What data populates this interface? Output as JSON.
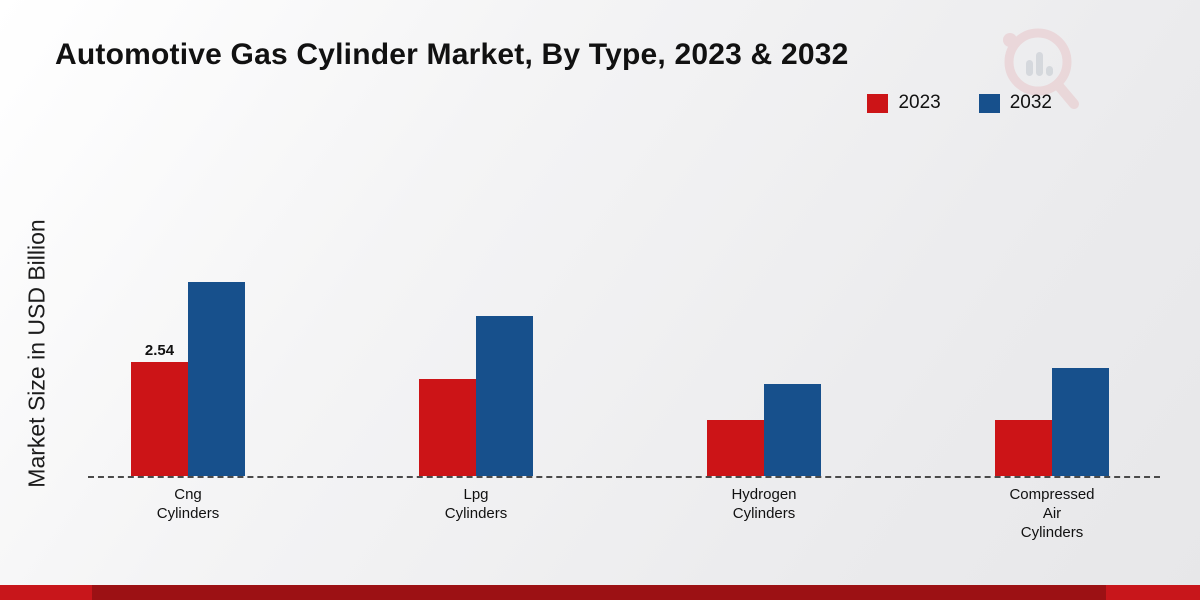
{
  "title": "Automotive Gas Cylinder Market, By Type, 2023 & 2032",
  "ylabel": "Market Size in USD Billion",
  "legend": [
    {
      "label": "2023",
      "color": "#cc1417"
    },
    {
      "label": "2032",
      "color": "#17508c"
    }
  ],
  "chart_data": {
    "type": "bar",
    "categories": [
      {
        "name": "Cng Cylinders",
        "lines": [
          "Cng",
          "Cylinders"
        ]
      },
      {
        "name": "Lpg Cylinders",
        "lines": [
          "Lpg",
          "Cylinders"
        ]
      },
      {
        "name": "Hydrogen Cylinders",
        "lines": [
          "Hydrogen",
          "Cylinders"
        ]
      },
      {
        "name": "Compressed Air Cylinders",
        "lines": [
          "Compressed",
          "Air",
          "Cylinders"
        ]
      }
    ],
    "series": [
      {
        "name": "2023",
        "color": "#cc1417",
        "values": [
          2.54,
          2.15,
          1.25,
          1.25
        ]
      },
      {
        "name": "2032",
        "color": "#17508c",
        "values": [
          4.3,
          3.55,
          2.05,
          2.4
        ]
      }
    ],
    "annotations": [
      {
        "group": 0,
        "series": 0,
        "text": "2.54"
      }
    ],
    "title": "Automotive Gas Cylinder Market, By Type, 2023 & 2032",
    "xlabel": "",
    "ylabel": "Market Size in USD Billion",
    "ylim": [
      0,
      5
    ],
    "grid": false,
    "legend_position": "top-right",
    "baseline_style": "dashed"
  }
}
